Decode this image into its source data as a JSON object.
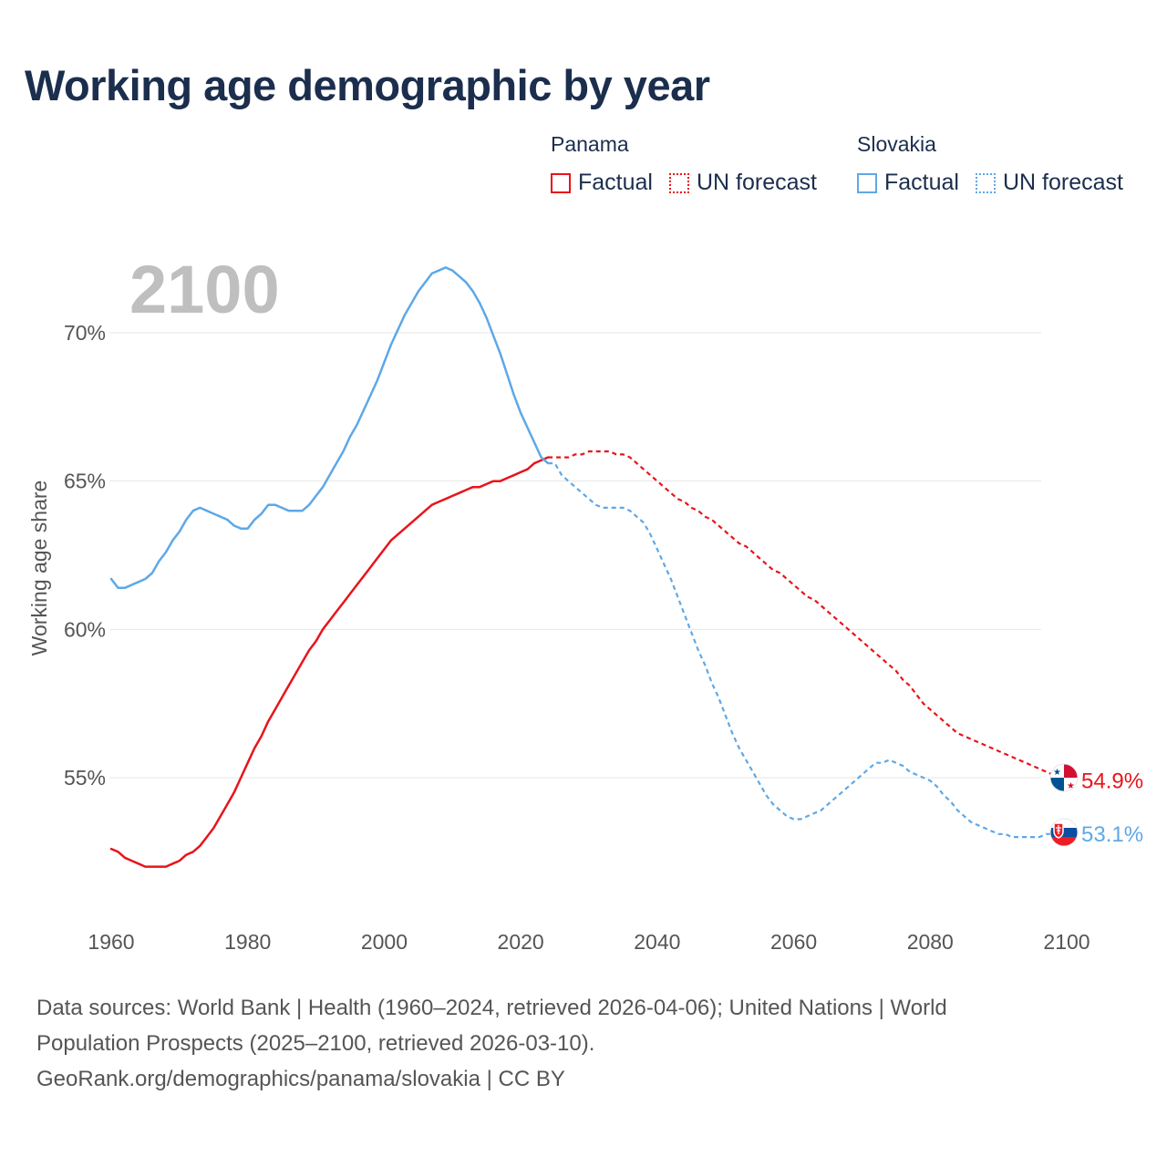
{
  "title": "Working age demographic by year",
  "legend": {
    "groups": [
      {
        "name": "Panama",
        "factual_label": "Factual",
        "forecast_label": "UN forecast",
        "color": "#e8141b"
      },
      {
        "name": "Slovakia",
        "factual_label": "Factual",
        "forecast_label": "UN forecast",
        "color": "#5ea8e6"
      }
    ]
  },
  "footer": {
    "line1": "Data sources: World Bank | Health (1960–2024, retrieved 2026-04-06); United Nations | World",
    "line2": "Population Prospects (2025–2100, retrieved 2026-03-10).",
    "line3": "GeoRank.org/demographics/panama/slovakia | CC BY"
  },
  "chart_data": {
    "type": "line",
    "title": "Working age demographic by year",
    "year_label": "2100",
    "xlabel": "",
    "ylabel": "Working age share",
    "xlim": [
      1960,
      2100
    ],
    "ylim": [
      50,
      72
    ],
    "x_ticks": [
      1960,
      1980,
      2000,
      2020,
      2040,
      2060,
      2080,
      2100
    ],
    "y_ticks": [
      55,
      60,
      65,
      70
    ],
    "y_tick_labels": [
      "55%",
      "60%",
      "65%",
      "70%"
    ],
    "grid": true,
    "forecast_start_year": 2024,
    "series": [
      {
        "name": "Panama",
        "color": "#e8141b",
        "end_label": "54.9%",
        "flag": "panama",
        "points": [
          [
            1960,
            52.6
          ],
          [
            1961,
            52.5
          ],
          [
            1962,
            52.3
          ],
          [
            1963,
            52.2
          ],
          [
            1964,
            52.1
          ],
          [
            1965,
            52.0
          ],
          [
            1966,
            52.0
          ],
          [
            1967,
            52.0
          ],
          [
            1968,
            52.0
          ],
          [
            1969,
            52.1
          ],
          [
            1970,
            52.2
          ],
          [
            1971,
            52.4
          ],
          [
            1972,
            52.5
          ],
          [
            1973,
            52.7
          ],
          [
            1974,
            53.0
          ],
          [
            1975,
            53.3
          ],
          [
            1976,
            53.7
          ],
          [
            1977,
            54.1
          ],
          [
            1978,
            54.5
          ],
          [
            1979,
            55.0
          ],
          [
            1980,
            55.5
          ],
          [
            1981,
            56.0
          ],
          [
            1982,
            56.4
          ],
          [
            1983,
            56.9
          ],
          [
            1984,
            57.3
          ],
          [
            1985,
            57.7
          ],
          [
            1986,
            58.1
          ],
          [
            1987,
            58.5
          ],
          [
            1988,
            58.9
          ],
          [
            1989,
            59.3
          ],
          [
            1990,
            59.6
          ],
          [
            1991,
            60.0
          ],
          [
            1992,
            60.3
          ],
          [
            1993,
            60.6
          ],
          [
            1994,
            60.9
          ],
          [
            1995,
            61.2
          ],
          [
            1996,
            61.5
          ],
          [
            1997,
            61.8
          ],
          [
            1998,
            62.1
          ],
          [
            1999,
            62.4
          ],
          [
            2000,
            62.7
          ],
          [
            2001,
            63.0
          ],
          [
            2002,
            63.2
          ],
          [
            2003,
            63.4
          ],
          [
            2004,
            63.6
          ],
          [
            2005,
            63.8
          ],
          [
            2006,
            64.0
          ],
          [
            2007,
            64.2
          ],
          [
            2008,
            64.3
          ],
          [
            2009,
            64.4
          ],
          [
            2010,
            64.5
          ],
          [
            2011,
            64.6
          ],
          [
            2012,
            64.7
          ],
          [
            2013,
            64.8
          ],
          [
            2014,
            64.8
          ],
          [
            2015,
            64.9
          ],
          [
            2016,
            65.0
          ],
          [
            2017,
            65.0
          ],
          [
            2018,
            65.1
          ],
          [
            2019,
            65.2
          ],
          [
            2020,
            65.3
          ],
          [
            2021,
            65.4
          ],
          [
            2022,
            65.6
          ],
          [
            2023,
            65.7
          ],
          [
            2024,
            65.8
          ],
          [
            2025,
            65.8
          ],
          [
            2026,
            65.8
          ],
          [
            2027,
            65.8
          ],
          [
            2028,
            65.9
          ],
          [
            2029,
            65.9
          ],
          [
            2030,
            66.0
          ],
          [
            2031,
            66.0
          ],
          [
            2032,
            66.0
          ],
          [
            2033,
            66.0
          ],
          [
            2034,
            65.9
          ],
          [
            2035,
            65.9
          ],
          [
            2036,
            65.8
          ],
          [
            2037,
            65.6
          ],
          [
            2038,
            65.4
          ],
          [
            2039,
            65.2
          ],
          [
            2040,
            65.0
          ],
          [
            2041,
            64.8
          ],
          [
            2042,
            64.6
          ],
          [
            2043,
            64.4
          ],
          [
            2044,
            64.3
          ],
          [
            2045,
            64.1
          ],
          [
            2046,
            64.0
          ],
          [
            2047,
            63.8
          ],
          [
            2048,
            63.7
          ],
          [
            2049,
            63.5
          ],
          [
            2050,
            63.3
          ],
          [
            2051,
            63.1
          ],
          [
            2052,
            62.9
          ],
          [
            2053,
            62.8
          ],
          [
            2054,
            62.6
          ],
          [
            2055,
            62.4
          ],
          [
            2056,
            62.2
          ],
          [
            2057,
            62.0
          ],
          [
            2058,
            61.9
          ],
          [
            2059,
            61.7
          ],
          [
            2060,
            61.5
          ],
          [
            2061,
            61.3
          ],
          [
            2062,
            61.1
          ],
          [
            2063,
            61.0
          ],
          [
            2064,
            60.8
          ],
          [
            2065,
            60.6
          ],
          [
            2066,
            60.4
          ],
          [
            2067,
            60.2
          ],
          [
            2068,
            60.0
          ],
          [
            2069,
            59.8
          ],
          [
            2070,
            59.6
          ],
          [
            2071,
            59.4
          ],
          [
            2072,
            59.2
          ],
          [
            2073,
            59.0
          ],
          [
            2074,
            58.8
          ],
          [
            2075,
            58.6
          ],
          [
            2076,
            58.3
          ],
          [
            2077,
            58.1
          ],
          [
            2078,
            57.8
          ],
          [
            2079,
            57.5
          ],
          [
            2080,
            57.3
          ],
          [
            2081,
            57.1
          ],
          [
            2082,
            56.9
          ],
          [
            2083,
            56.7
          ],
          [
            2084,
            56.5
          ],
          [
            2085,
            56.4
          ],
          [
            2086,
            56.3
          ],
          [
            2087,
            56.2
          ],
          [
            2088,
            56.1
          ],
          [
            2089,
            56.0
          ],
          [
            2090,
            55.9
          ],
          [
            2091,
            55.8
          ],
          [
            2092,
            55.7
          ],
          [
            2093,
            55.6
          ],
          [
            2094,
            55.5
          ],
          [
            2095,
            55.4
          ],
          [
            2096,
            55.3
          ],
          [
            2097,
            55.2
          ],
          [
            2098,
            55.1
          ],
          [
            2099,
            55.0
          ],
          [
            2100,
            54.9
          ]
        ]
      },
      {
        "name": "Slovakia",
        "color": "#5ea8e6",
        "end_label": "53.1%",
        "flag": "slovakia",
        "points": [
          [
            1960,
            61.7
          ],
          [
            1961,
            61.4
          ],
          [
            1962,
            61.4
          ],
          [
            1963,
            61.5
          ],
          [
            1964,
            61.6
          ],
          [
            1965,
            61.7
          ],
          [
            1966,
            61.9
          ],
          [
            1967,
            62.3
          ],
          [
            1968,
            62.6
          ],
          [
            1969,
            63.0
          ],
          [
            1970,
            63.3
          ],
          [
            1971,
            63.7
          ],
          [
            1972,
            64.0
          ],
          [
            1973,
            64.1
          ],
          [
            1974,
            64.0
          ],
          [
            1975,
            63.9
          ],
          [
            1976,
            63.8
          ],
          [
            1977,
            63.7
          ],
          [
            1978,
            63.5
          ],
          [
            1979,
            63.4
          ],
          [
            1980,
            63.4
          ],
          [
            1981,
            63.7
          ],
          [
            1982,
            63.9
          ],
          [
            1983,
            64.2
          ],
          [
            1984,
            64.2
          ],
          [
            1985,
            64.1
          ],
          [
            1986,
            64.0
          ],
          [
            1987,
            64.0
          ],
          [
            1988,
            64.0
          ],
          [
            1989,
            64.2
          ],
          [
            1990,
            64.5
          ],
          [
            1991,
            64.8
          ],
          [
            1992,
            65.2
          ],
          [
            1993,
            65.6
          ],
          [
            1994,
            66.0
          ],
          [
            1995,
            66.5
          ],
          [
            1996,
            66.9
          ],
          [
            1997,
            67.4
          ],
          [
            1998,
            67.9
          ],
          [
            1999,
            68.4
          ],
          [
            2000,
            69.0
          ],
          [
            2001,
            69.6
          ],
          [
            2002,
            70.1
          ],
          [
            2003,
            70.6
          ],
          [
            2004,
            71.0
          ],
          [
            2005,
            71.4
          ],
          [
            2006,
            71.7
          ],
          [
            2007,
            72.0
          ],
          [
            2008,
            72.1
          ],
          [
            2009,
            72.2
          ],
          [
            2010,
            72.1
          ],
          [
            2011,
            71.9
          ],
          [
            2012,
            71.7
          ],
          [
            2013,
            71.4
          ],
          [
            2014,
            71.0
          ],
          [
            2015,
            70.5
          ],
          [
            2016,
            69.9
          ],
          [
            2017,
            69.3
          ],
          [
            2018,
            68.6
          ],
          [
            2019,
            67.9
          ],
          [
            2020,
            67.3
          ],
          [
            2021,
            66.8
          ],
          [
            2022,
            66.3
          ],
          [
            2023,
            65.8
          ],
          [
            2024,
            65.6
          ],
          [
            2025,
            65.6
          ],
          [
            2026,
            65.2
          ],
          [
            2027,
            65.0
          ],
          [
            2028,
            64.8
          ],
          [
            2029,
            64.6
          ],
          [
            2030,
            64.4
          ],
          [
            2031,
            64.2
          ],
          [
            2032,
            64.1
          ],
          [
            2033,
            64.1
          ],
          [
            2034,
            64.1
          ],
          [
            2035,
            64.1
          ],
          [
            2036,
            64.0
          ],
          [
            2037,
            63.8
          ],
          [
            2038,
            63.6
          ],
          [
            2039,
            63.2
          ],
          [
            2040,
            62.7
          ],
          [
            2041,
            62.2
          ],
          [
            2042,
            61.7
          ],
          [
            2043,
            61.1
          ],
          [
            2044,
            60.5
          ],
          [
            2045,
            59.9
          ],
          [
            2046,
            59.3
          ],
          [
            2047,
            58.8
          ],
          [
            2048,
            58.2
          ],
          [
            2049,
            57.7
          ],
          [
            2050,
            57.1
          ],
          [
            2051,
            56.5
          ],
          [
            2052,
            56.0
          ],
          [
            2053,
            55.6
          ],
          [
            2054,
            55.2
          ],
          [
            2055,
            54.8
          ],
          [
            2056,
            54.4
          ],
          [
            2057,
            54.1
          ],
          [
            2058,
            53.9
          ],
          [
            2059,
            53.7
          ],
          [
            2060,
            53.6
          ],
          [
            2061,
            53.6
          ],
          [
            2062,
            53.7
          ],
          [
            2063,
            53.8
          ],
          [
            2064,
            53.9
          ],
          [
            2065,
            54.1
          ],
          [
            2066,
            54.3
          ],
          [
            2067,
            54.5
          ],
          [
            2068,
            54.7
          ],
          [
            2069,
            54.9
          ],
          [
            2070,
            55.1
          ],
          [
            2071,
            55.3
          ],
          [
            2072,
            55.5
          ],
          [
            2073,
            55.5
          ],
          [
            2074,
            55.6
          ],
          [
            2075,
            55.5
          ],
          [
            2076,
            55.4
          ],
          [
            2077,
            55.2
          ],
          [
            2078,
            55.1
          ],
          [
            2079,
            55.0
          ],
          [
            2080,
            54.9
          ],
          [
            2081,
            54.7
          ],
          [
            2082,
            54.4
          ],
          [
            2083,
            54.2
          ],
          [
            2084,
            53.9
          ],
          [
            2085,
            53.7
          ],
          [
            2086,
            53.5
          ],
          [
            2087,
            53.4
          ],
          [
            2088,
            53.3
          ],
          [
            2089,
            53.2
          ],
          [
            2090,
            53.1
          ],
          [
            2091,
            53.1
          ],
          [
            2092,
            53.0
          ],
          [
            2093,
            53.0
          ],
          [
            2094,
            53.0
          ],
          [
            2095,
            53.0
          ],
          [
            2096,
            53.0
          ],
          [
            2097,
            53.1
          ],
          [
            2098,
            53.1
          ],
          [
            2099,
            53.1
          ],
          [
            2100,
            53.1
          ]
        ]
      }
    ]
  }
}
